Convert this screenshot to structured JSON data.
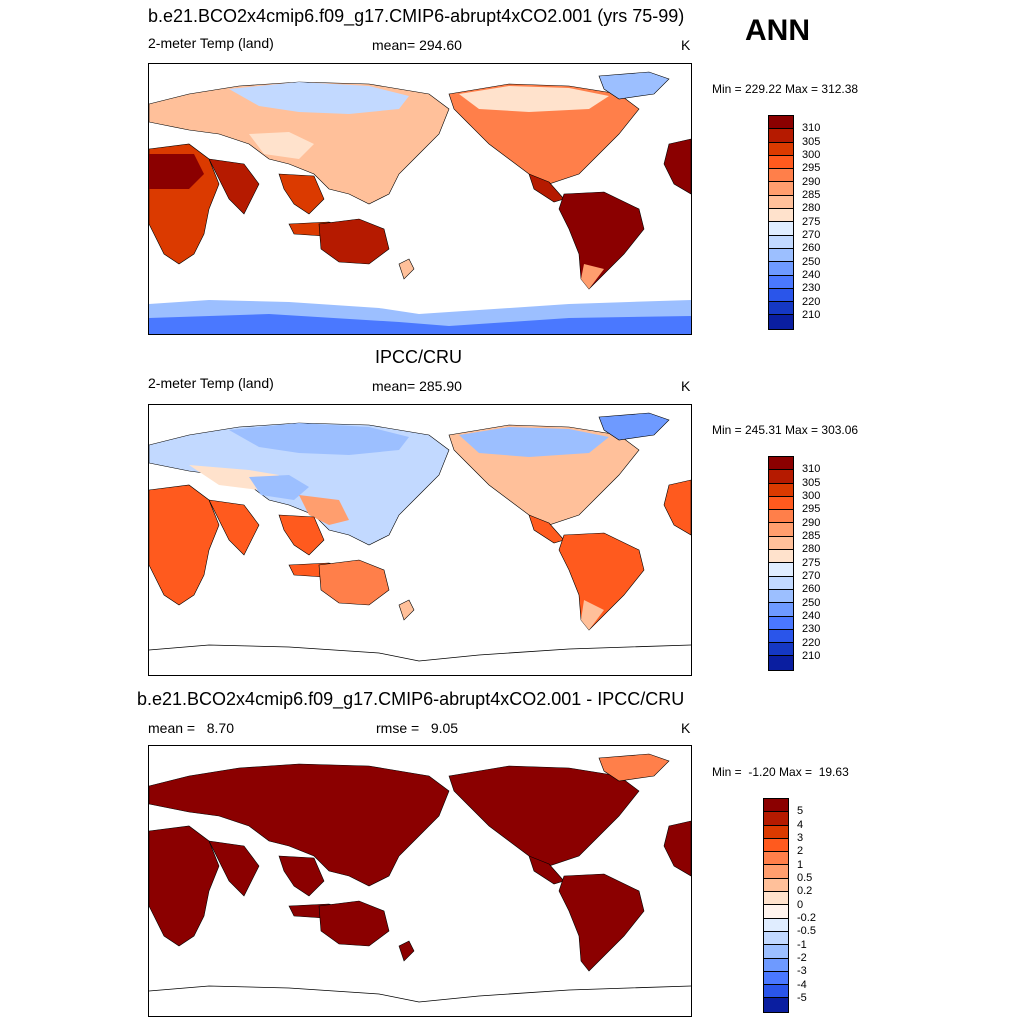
{
  "season": "ANN",
  "colors": {
    "temp_scale": [
      "#8b0000",
      "#b51a00",
      "#db3a00",
      "#ff5a1e",
      "#ff7f4a",
      "#ff9e6e",
      "#ffc09a",
      "#ffe2cc",
      "#e0edff",
      "#c2d9ff",
      "#9cbfff",
      "#6e9aff",
      "#4a78ff",
      "#2a55ea",
      "#1538c4",
      "#0a1ea0",
      "#000080"
    ],
    "diff_scale": [
      "#8b0000",
      "#b51a00",
      "#db3a00",
      "#ff5a1e",
      "#ff7f4a",
      "#ff9e6e",
      "#ffc09a",
      "#ffe2cc",
      "#fff4ee",
      "#e0edff",
      "#c2d9ff",
      "#9cbfff",
      "#6e9aff",
      "#4a78ff",
      "#2a55ea",
      "#1538c4",
      "#0a1ea0",
      "#000080"
    ],
    "coastline": "#000000"
  },
  "panels": [
    {
      "title": "b.e21.BCO2x4cmip6.f09_g17.CMIP6-abrupt4xCO2.001 (yrs 75-99)",
      "left_label": "2-meter Temp (land)",
      "center_label": "mean= 294.60",
      "units": "K",
      "minmax": "Min = 229.22 Max = 312.38",
      "colorbar_labels": [
        "310",
        "305",
        "300",
        "295",
        "290",
        "285",
        "280",
        "275",
        "270",
        "260",
        "250",
        "240",
        "230",
        "220",
        "210"
      ],
      "map_data": {
        "variable": "2-meter Temp (land)",
        "mean": 294.6,
        "min": 229.22,
        "max": 312.38,
        "units": "K",
        "regions": {
          "Antarctica": "250-270",
          "Greenland": "260-275",
          "North Asia / Siberia": "270-285",
          "Central Asia / Tibet": "275-290",
          "Africa": "300-310",
          "South America": "300-310",
          "Australia": "300-310",
          "India / SE Asia": "300-310",
          "North America": "280-300",
          "Europe": "285-295"
        }
      }
    },
    {
      "title": "IPCC/CRU",
      "left_label": "2-meter Temp (land)",
      "center_label": "mean= 285.90",
      "units": "K",
      "minmax": "Min = 245.31 Max = 303.06",
      "colorbar_labels": [
        "310",
        "305",
        "300",
        "295",
        "290",
        "285",
        "280",
        "275",
        "270",
        "260",
        "250",
        "240",
        "230",
        "220",
        "210"
      ],
      "map_data": {
        "variable": "2-meter Temp (land)",
        "mean": 285.9,
        "min": 245.31,
        "max": 303.06,
        "units": "K",
        "regions": {
          "Antarctica": "no data",
          "Greenland": "250-260",
          "North Asia / Siberia": "260-275",
          "Central Asia / Tibet": "265-280",
          "Africa": "295-300",
          "South America": "290-300",
          "Australia": "290-300",
          "India / SE Asia": "295-300",
          "North America": "270-290",
          "Europe": "275-285"
        }
      }
    },
    {
      "title": "b.e21.BCO2x4cmip6.f09_g17.CMIP6-abrupt4xCO2.001 - IPCC/CRU",
      "left_label": "mean =   8.70",
      "center_label": "rmse =   9.05",
      "units": "K",
      "minmax": "Min =  -1.20 Max =  19.63",
      "colorbar_labels": [
        "5",
        "4",
        "3",
        "2",
        "1",
        "0.5",
        "0.2",
        "0",
        "-0.2",
        "-0.5",
        "-1",
        "-2",
        "-3",
        "-4",
        "-5"
      ],
      "map_data": {
        "variable": "difference (model - obs)",
        "mean": 8.7,
        "rmse": 9.05,
        "min": -1.2,
        "max": 19.63,
        "units": "K",
        "regions": {
          "All land": "> 5",
          "Greenland": "0.5-5"
        }
      }
    }
  ]
}
